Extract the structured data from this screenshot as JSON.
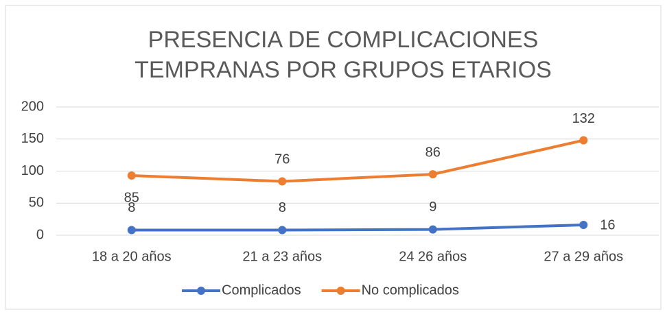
{
  "chart_data": {
    "type": "line",
    "stacked": true,
    "title": "PRESENCIA DE COMPLICACIONES TEMPRANAS POR GRUPOS ETARIOS",
    "categories": [
      "18 a 20 años",
      "21 a 23 años",
      "24 26 años",
      "27 a 29 años"
    ],
    "series": [
      {
        "name": "Complicados",
        "color": "#4472c4",
        "values": [
          8,
          8,
          9,
          16
        ]
      },
      {
        "name": "No complicados",
        "color": "#ed7d31",
        "values": [
          85,
          76,
          86,
          132
        ]
      }
    ],
    "ylim": [
      0,
      200
    ],
    "yticks": [
      0,
      50,
      100,
      150,
      200
    ],
    "grid": true,
    "legend": "bottom"
  }
}
